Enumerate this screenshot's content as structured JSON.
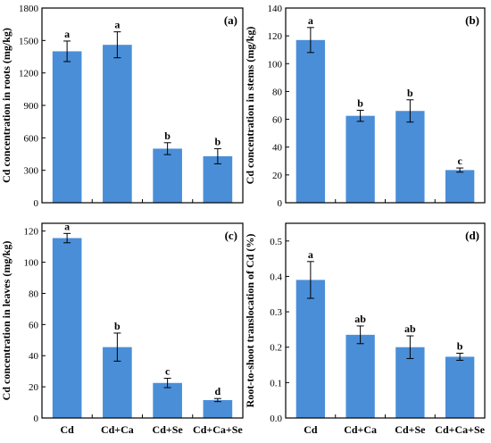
{
  "figure": {
    "bar_color": "#4a8ed8",
    "axis_color": "#000000"
  },
  "chart_data": [
    {
      "type": "bar",
      "panel_label": "(a)",
      "ylabel": "Cd concentration in roots (mg/kg)",
      "ylim": [
        0,
        1800
      ],
      "yticks": [
        0,
        300,
        600,
        900,
        1200,
        1500,
        1800
      ],
      "categories": [
        "Cd",
        "Cd+Ca",
        "Cd+Se",
        "Cd+Ca+Se"
      ],
      "show_category_labels": false,
      "values": [
        1400,
        1460,
        500,
        430
      ],
      "errors": [
        95,
        120,
        55,
        70
      ],
      "letters": [
        "a",
        "a",
        "b",
        "b"
      ]
    },
    {
      "type": "bar",
      "panel_label": "(b)",
      "ylabel": "Cd concentration in stems (mg/kg)",
      "ylim": [
        0,
        140
      ],
      "yticks": [
        0,
        20,
        40,
        60,
        80,
        100,
        120,
        140
      ],
      "categories": [
        "Cd",
        "Cd+Ca",
        "Cd+Se",
        "Cd+Ca+Se"
      ],
      "show_category_labels": false,
      "values": [
        117,
        62.5,
        66,
        23.5
      ],
      "errors": [
        9,
        4,
        8,
        1.5
      ],
      "letters": [
        "a",
        "b",
        "b",
        "c"
      ]
    },
    {
      "type": "bar",
      "panel_label": "(c)",
      "ylabel": "Cd concentration in leaves (mg/kg)",
      "ylim": [
        0,
        125
      ],
      "yticks": [
        0,
        20,
        40,
        60,
        80,
        100,
        120
      ],
      "categories": [
        "Cd",
        "Cd+Ca",
        "Cd+Se",
        "Cd+Ca+Se"
      ],
      "show_category_labels": true,
      "values": [
        115.5,
        45.5,
        22.5,
        11.5
      ],
      "errors": [
        3,
        9,
        3,
        1
      ],
      "letters": [
        "a",
        "b",
        "c",
        "d"
      ]
    },
    {
      "type": "bar",
      "panel_label": "(d)",
      "ylabel": "Root-to-shoot translocation of Cd (%)",
      "ylim": [
        0,
        0.55
      ],
      "yticks": [
        0.0,
        0.1,
        0.2,
        0.3,
        0.4,
        0.5
      ],
      "categories": [
        "Cd",
        "Cd+Ca",
        "Cd+Se",
        "Cd+Ca+Se"
      ],
      "show_category_labels": true,
      "values": [
        0.39,
        0.235,
        0.2,
        0.173
      ],
      "errors": [
        0.052,
        0.025,
        0.032,
        0.01
      ],
      "letters": [
        "a",
        "ab",
        "ab",
        "b"
      ]
    }
  ]
}
